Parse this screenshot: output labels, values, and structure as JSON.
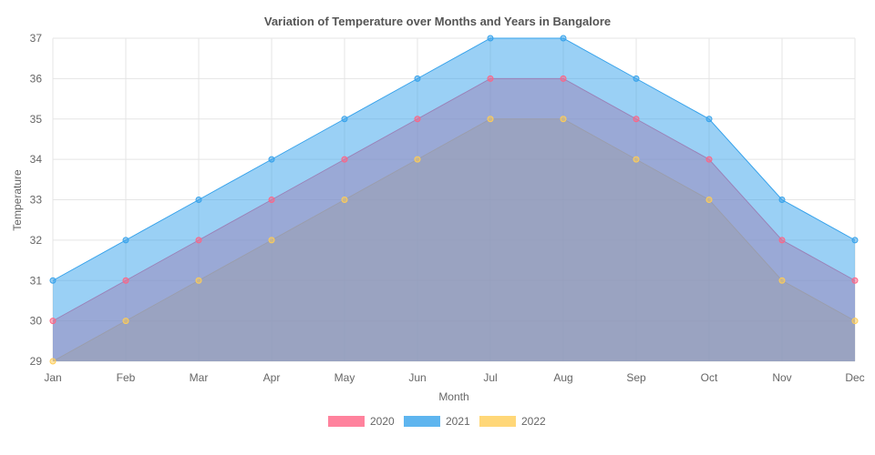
{
  "chart_data": {
    "type": "area",
    "title": "Variation of Temperature over Months and Years in Bangalore",
    "xlabel": "Month",
    "ylabel": "Temperature",
    "ylim": [
      29,
      37
    ],
    "yticks": [
      "29",
      "30",
      "31",
      "32",
      "33",
      "34",
      "35",
      "36",
      "37"
    ],
    "categories": [
      "Jan",
      "Feb",
      "Mar",
      "Apr",
      "May",
      "Jun",
      "Jul",
      "Aug",
      "Sep",
      "Oct",
      "Nov",
      "Dec"
    ],
    "grid": true,
    "legend_position": "bottom",
    "series": [
      {
        "name": "2020",
        "color": "#ff6384",
        "values": [
          30,
          31,
          32,
          33,
          34,
          35,
          36,
          36,
          35,
          34,
          32,
          31
        ]
      },
      {
        "name": "2021",
        "color": "#36a2eb",
        "values": [
          31,
          32,
          33,
          34,
          35,
          36,
          37,
          37,
          36,
          35,
          33,
          32
        ]
      },
      {
        "name": "2022",
        "color": "#ffcd56",
        "values": [
          29,
          30,
          31,
          32,
          33,
          34,
          35,
          35,
          34,
          33,
          31,
          30
        ]
      }
    ],
    "draw_order": [
      "2022",
      "2020",
      "2021"
    ]
  }
}
